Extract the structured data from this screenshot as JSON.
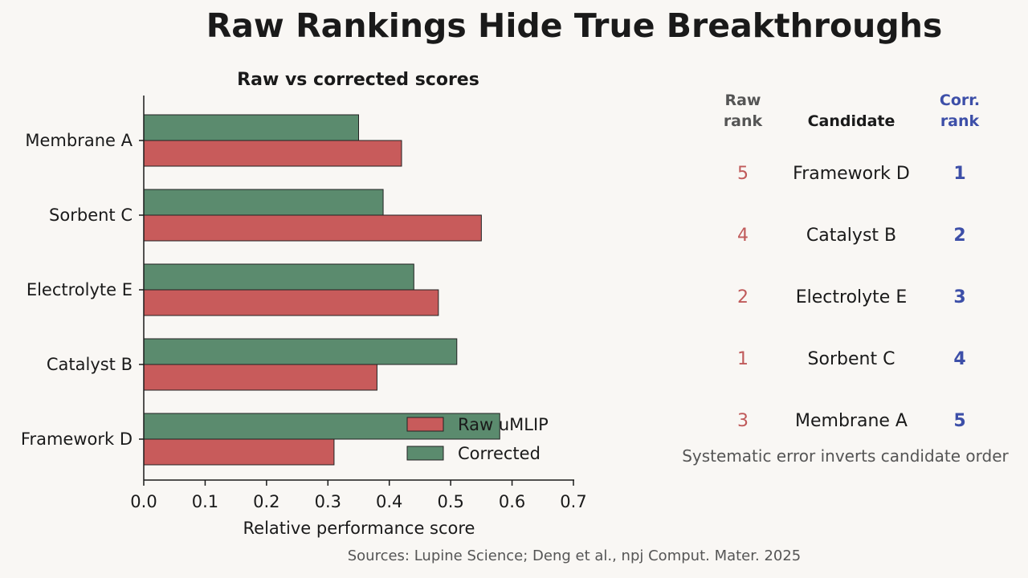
{
  "title": "Raw Rankings Hide True Breakthroughs",
  "chart_data": {
    "type": "bar",
    "orientation": "horizontal",
    "title": "Raw vs corrected scores",
    "xlabel": "Relative performance score",
    "ylabel": "",
    "xlim": [
      0,
      0.7
    ],
    "xticks": [
      "0.0",
      "0.1",
      "0.2",
      "0.3",
      "0.4",
      "0.5",
      "0.6",
      "0.7"
    ],
    "categories": [
      "Membrane A",
      "Sorbent C",
      "Electrolyte E",
      "Catalyst B",
      "Framework D"
    ],
    "series": [
      {
        "name": "Raw uMLIP",
        "color": "#c85b5b",
        "values": [
          0.42,
          0.55,
          0.48,
          0.38,
          0.31
        ]
      },
      {
        "name": "Corrected",
        "color": "#5b8b6e",
        "values": [
          0.35,
          0.39,
          0.44,
          0.51,
          0.58
        ]
      }
    ],
    "legend_position": "bottom-right",
    "grid": false
  },
  "ranking_table": {
    "headers": {
      "raw": [
        "Raw",
        "rank"
      ],
      "candidate": "Candidate",
      "corrected": [
        "Corr.",
        "rank"
      ]
    },
    "rows": [
      {
        "raw": "5",
        "candidate": "Framework D",
        "corrected": "1"
      },
      {
        "raw": "4",
        "candidate": "Catalyst B",
        "corrected": "2"
      },
      {
        "raw": "2",
        "candidate": "Electrolyte E",
        "corrected": "3"
      },
      {
        "raw": "1",
        "candidate": "Sorbent C",
        "corrected": "4"
      },
      {
        "raw": "3",
        "candidate": "Membrane A",
        "corrected": "5"
      }
    ],
    "note": "Systematic error inverts candidate order"
  },
  "sources": "Sources: Lupine Science; Deng et al., npj Comput. Mater. 2025"
}
